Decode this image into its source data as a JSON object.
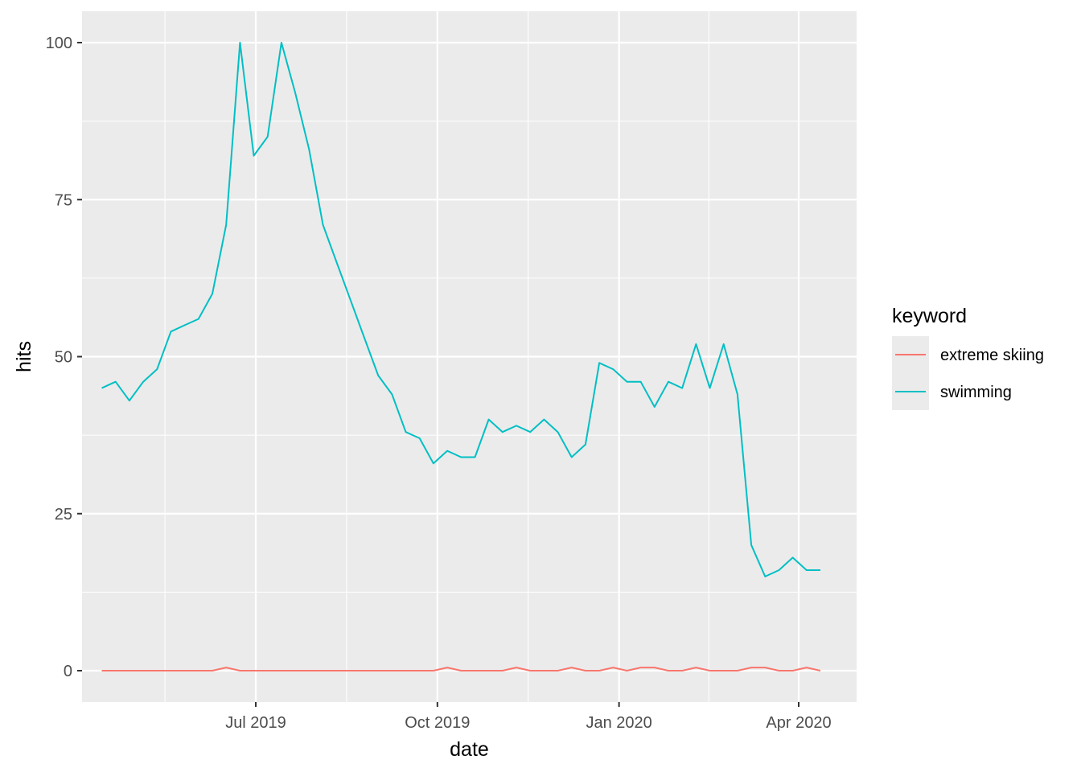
{
  "chart_data": {
    "type": "line",
    "xlabel": "date",
    "ylabel": "hits",
    "ylim": [
      0,
      100
    ],
    "y_ticks": [
      0,
      25,
      50,
      75,
      100
    ],
    "x_ticks": [
      "Jul 2019",
      "Oct 2019",
      "Jan 2020",
      "Apr 2020"
    ],
    "x_tick_dates": [
      "2019-07-01",
      "2019-10-01",
      "2020-01-01",
      "2020-04-01"
    ],
    "grid": true,
    "legend": {
      "title": "keyword",
      "position": "right"
    },
    "x_dates": [
      "2019-04-14",
      "2019-04-21",
      "2019-04-28",
      "2019-05-05",
      "2019-05-12",
      "2019-05-19",
      "2019-05-26",
      "2019-06-02",
      "2019-06-09",
      "2019-06-16",
      "2019-06-23",
      "2019-06-30",
      "2019-07-07",
      "2019-07-14",
      "2019-07-21",
      "2019-07-28",
      "2019-08-04",
      "2019-08-11",
      "2019-08-18",
      "2019-08-25",
      "2019-09-01",
      "2019-09-08",
      "2019-09-15",
      "2019-09-22",
      "2019-09-29",
      "2019-10-06",
      "2019-10-13",
      "2019-10-20",
      "2019-10-27",
      "2019-11-03",
      "2019-11-10",
      "2019-11-17",
      "2019-11-24",
      "2019-12-01",
      "2019-12-08",
      "2019-12-15",
      "2019-12-22",
      "2019-12-29",
      "2020-01-05",
      "2020-01-12",
      "2020-01-19",
      "2020-01-26",
      "2020-02-02",
      "2020-02-09",
      "2020-02-16",
      "2020-02-23",
      "2020-03-01",
      "2020-03-08",
      "2020-03-15",
      "2020-03-22",
      "2020-03-29",
      "2020-04-05",
      "2020-04-12"
    ],
    "series": [
      {
        "name": "extreme skiing",
        "color": "#F8766D",
        "values": [
          0,
          0,
          0,
          0,
          0,
          0,
          0,
          0,
          0,
          0.5,
          0,
          0,
          0,
          0,
          0,
          0,
          0,
          0,
          0,
          0,
          0,
          0,
          0,
          0,
          0,
          0.5,
          0,
          0,
          0,
          0,
          0.5,
          0,
          0,
          0,
          0.5,
          0,
          0,
          0.5,
          0,
          0.5,
          0.5,
          0,
          0,
          0.5,
          0,
          0,
          0,
          0.5,
          0.5,
          0,
          0,
          0.5,
          0
        ]
      },
      {
        "name": "swimming",
        "color": "#00BFC4",
        "values": [
          45,
          46,
          43,
          46,
          48,
          54,
          55,
          56,
          60,
          71,
          100,
          82,
          85,
          100,
          92,
          83,
          71,
          65,
          59,
          53,
          47,
          44,
          38,
          37,
          33,
          35,
          34,
          34,
          40,
          38,
          39,
          38,
          40,
          38,
          34,
          36,
          49,
          48,
          46,
          46,
          42,
          46,
          45,
          52,
          45,
          52,
          44,
          20,
          15,
          16,
          18,
          16,
          16
        ]
      }
    ]
  }
}
